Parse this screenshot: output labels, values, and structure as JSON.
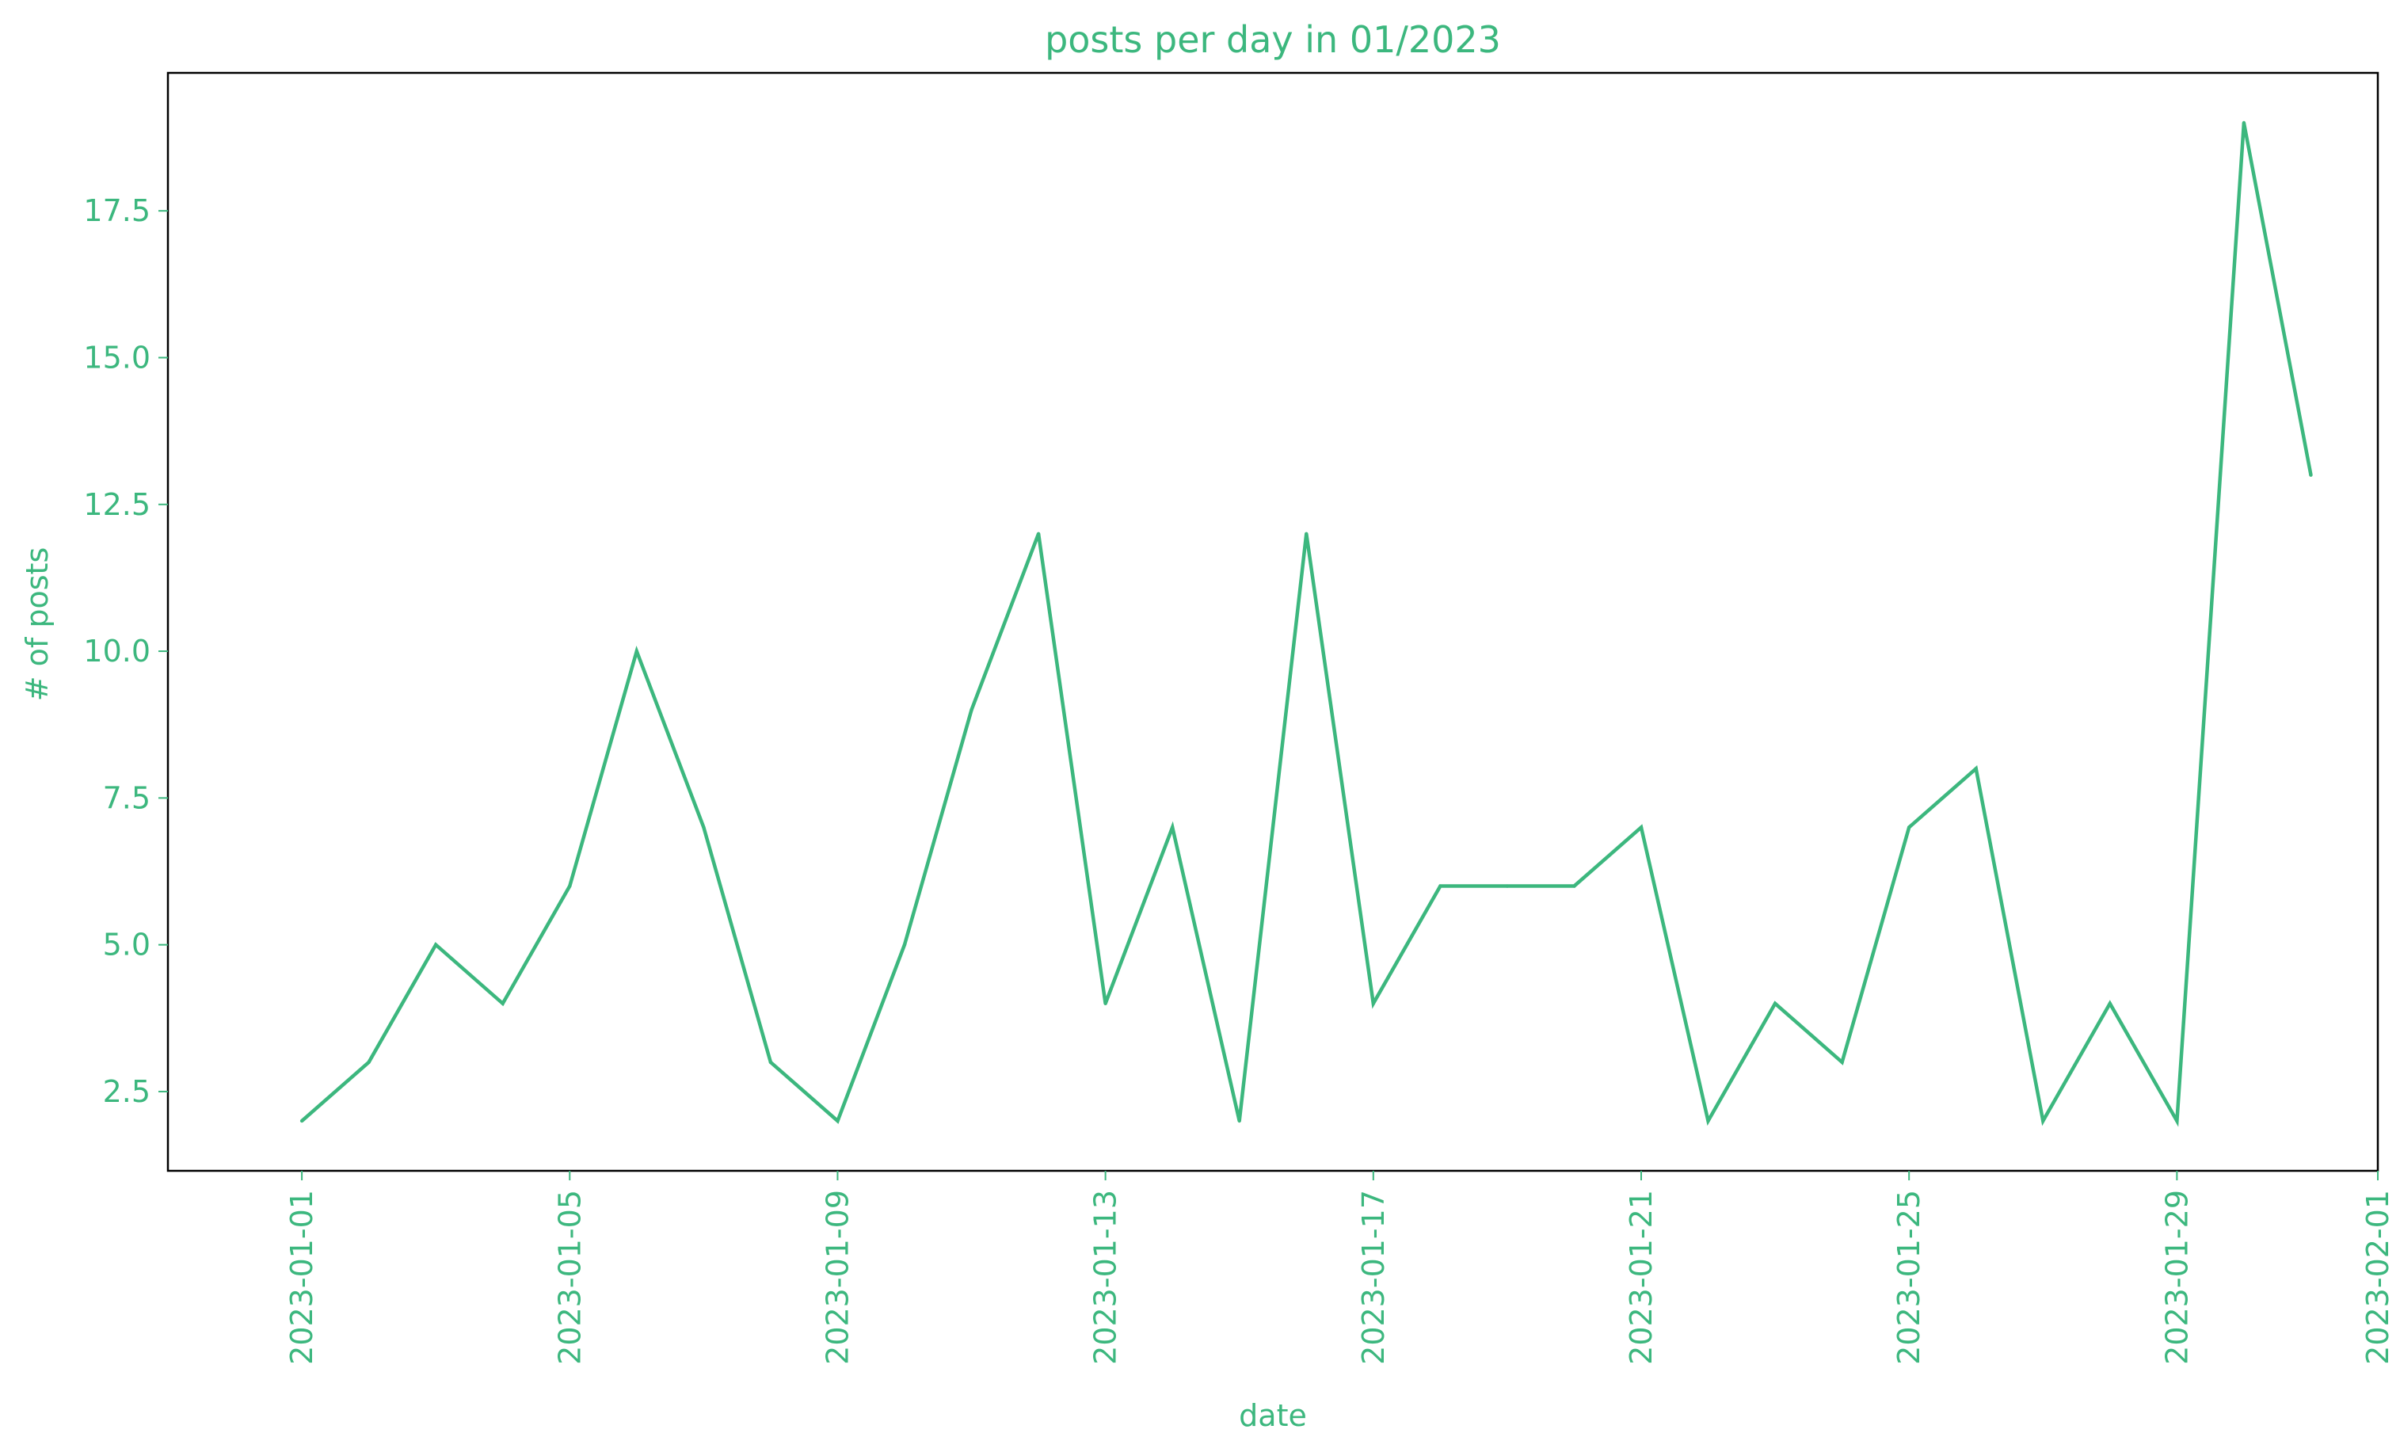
{
  "chart_data": {
    "type": "line",
    "title": "posts per day in 01/2023",
    "xlabel": "date",
    "ylabel": "# of posts",
    "color": "#3cb77e",
    "grid": false,
    "legend": "none",
    "xlim": [
      "2022-12-30",
      "2023-02-01"
    ],
    "ylim": [
      1.15,
      19.85
    ],
    "x_ticks": [
      "2023-01-01",
      "2023-01-05",
      "2023-01-09",
      "2023-01-13",
      "2023-01-17",
      "2023-01-21",
      "2023-01-25",
      "2023-01-29",
      "2023-02-01"
    ],
    "y_ticks": [
      2.5,
      5.0,
      7.5,
      10.0,
      12.5,
      15.0,
      17.5
    ],
    "x": [
      "2023-01-01",
      "2023-01-02",
      "2023-01-03",
      "2023-01-04",
      "2023-01-05",
      "2023-01-06",
      "2023-01-07",
      "2023-01-08",
      "2023-01-09",
      "2023-01-10",
      "2023-01-11",
      "2023-01-12",
      "2023-01-13",
      "2023-01-14",
      "2023-01-15",
      "2023-01-16",
      "2023-01-17",
      "2023-01-18",
      "2023-01-19",
      "2023-01-20",
      "2023-01-21",
      "2023-01-22",
      "2023-01-23",
      "2023-01-24",
      "2023-01-25",
      "2023-01-26",
      "2023-01-27",
      "2023-01-28",
      "2023-01-29",
      "2023-01-30",
      "2023-01-31"
    ],
    "values": [
      2,
      3,
      5,
      4,
      6,
      10,
      7,
      3,
      2,
      5,
      9,
      12,
      4,
      7,
      2,
      12,
      4,
      6,
      6,
      6,
      7,
      2,
      4,
      3,
      7,
      8,
      2,
      4,
      2,
      19,
      13
    ]
  }
}
